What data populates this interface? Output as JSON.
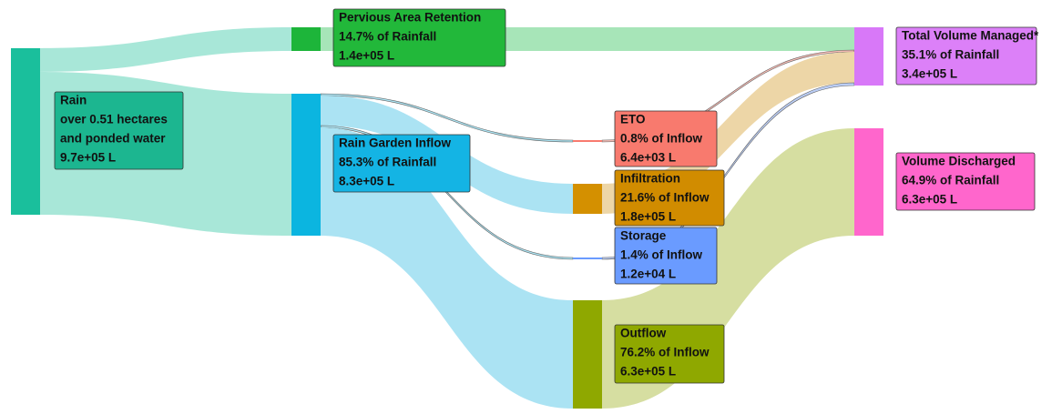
{
  "nodes": [
    {
      "lines": [
        "Rain",
        "over 0.51 hectares",
        "and ponded water",
        "9.7e+05 L"
      ]
    },
    {
      "lines": [
        "Pervious Area Retention",
        "14.7% of Rainfall",
        "1.4e+05 L"
      ]
    },
    {
      "lines": [
        "Rain Garden Inflow",
        "85.3% of Rainfall",
        "8.3e+05 L"
      ]
    },
    {
      "lines": [
        "ETO",
        "0.8% of Inflow",
        "6.4e+03 L"
      ]
    },
    {
      "lines": [
        "Infiltration",
        "21.6% of Inflow",
        "1.8e+05 L"
      ]
    },
    {
      "lines": [
        "Storage",
        "1.4% of Inflow",
        "1.2e+04 L"
      ]
    },
    {
      "lines": [
        "Outflow",
        "76.2% of Inflow",
        "6.3e+05 L"
      ]
    },
    {
      "lines": [
        "Total Volume Managed*",
        "35.1% of Rainfall",
        "3.4e+05 L"
      ]
    },
    {
      "lines": [
        "Volume Discharged",
        "64.9% of Rainfall",
        "6.3e+05 L"
      ]
    }
  ]
}
